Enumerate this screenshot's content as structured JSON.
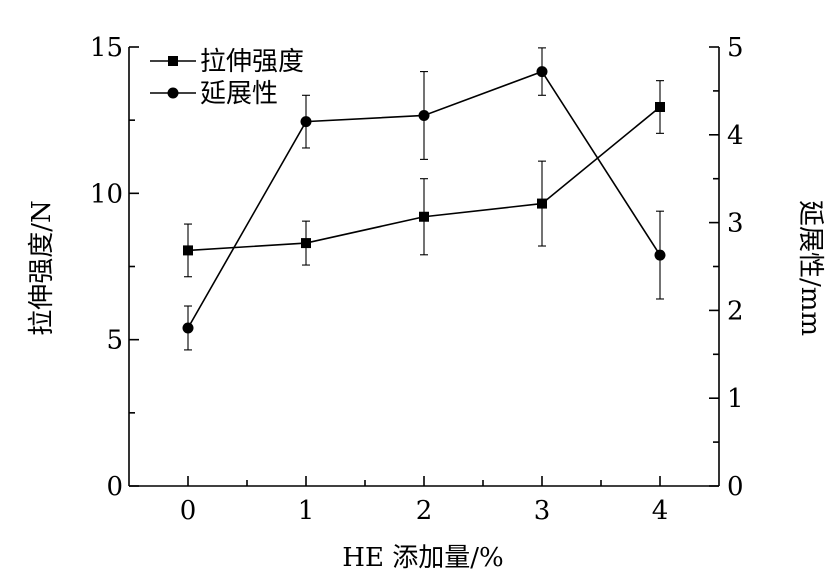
{
  "chart_data": {
    "type": "line",
    "title": "",
    "xlabel": "HE 添加量/%",
    "ylabel": "拉伸强度/N",
    "y2label": "延展性/mm",
    "x": [
      0,
      1,
      2,
      3,
      4
    ],
    "x_ticks": [
      "0",
      "1",
      "2",
      "3",
      "4"
    ],
    "xlim": [
      -0.5,
      4.5
    ],
    "ylim": [
      0,
      15
    ],
    "y2lim": [
      0,
      5
    ],
    "y_ticks": [
      "0",
      "5",
      "10",
      "15"
    ],
    "y2_ticks": [
      "0",
      "1",
      "2",
      "3",
      "4",
      "5"
    ],
    "grid": false,
    "legend_position": "top-left",
    "series": [
      {
        "name": "拉伸强度",
        "axis": "left",
        "marker": "square",
        "values": [
          8.05,
          8.3,
          9.2,
          9.65,
          12.95
        ],
        "errors": [
          0.9,
          0.75,
          1.3,
          1.45,
          0.9
        ]
      },
      {
        "name": "延展性",
        "axis": "right",
        "marker": "circle",
        "values": [
          1.8,
          4.15,
          4.22,
          4.72,
          2.63
        ],
        "errors": [
          0.25,
          0.3,
          0.5,
          0.27,
          0.5
        ]
      }
    ]
  }
}
